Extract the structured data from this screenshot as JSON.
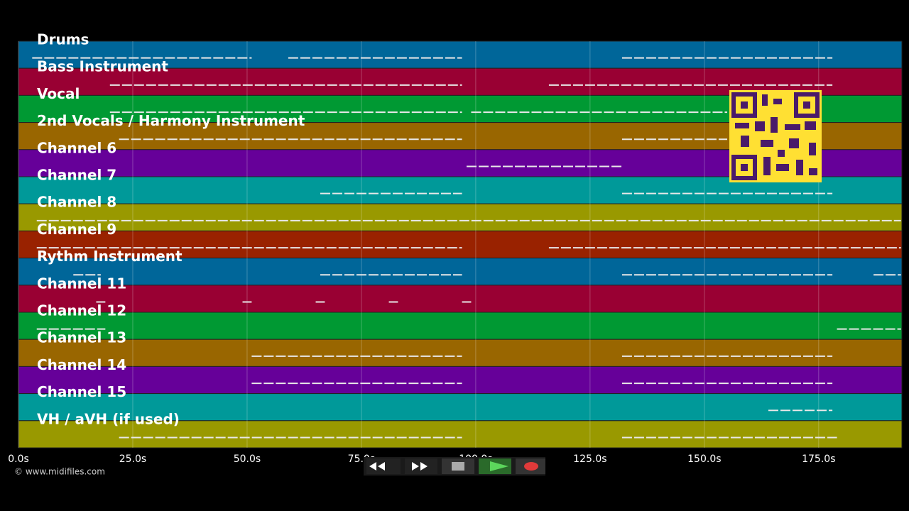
{
  "tracks": [
    {
      "name": "Drums",
      "color": "#006699",
      "notes": [
        [
          3,
          51
        ],
        [
          59,
          97
        ],
        [
          132,
          178
        ]
      ]
    },
    {
      "name": "Bass Instrument",
      "color": "#990033",
      "notes": [
        [
          20,
          97
        ],
        [
          116,
          178
        ]
      ]
    },
    {
      "name": "Vocal",
      "color": "#009933",
      "notes": [
        [
          20,
          97
        ],
        [
          99,
          155
        ]
      ]
    },
    {
      "name": "2nd Vocals / Harmony Instrument",
      "color": "#996600",
      "notes": [
        [
          22,
          97
        ],
        [
          132,
          155
        ]
      ]
    },
    {
      "name": "Channel 6",
      "color": "#660099",
      "notes": [
        [
          98,
          132
        ]
      ]
    },
    {
      "name": "Channel 7",
      "color": "#009999",
      "notes": [
        [
          66,
          97
        ],
        [
          132,
          178
        ]
      ]
    },
    {
      "name": "Channel 8",
      "color": "#999900",
      "notes": [
        [
          4,
          193
        ]
      ]
    },
    {
      "name": "Channel 9",
      "color": "#992200",
      "notes": [
        [
          4,
          97
        ],
        [
          116,
          193
        ]
      ]
    },
    {
      "name": "Rythm Instrument",
      "color": "#006699",
      "notes": [
        [
          12,
          18
        ],
        [
          66,
          97
        ],
        [
          132,
          178
        ],
        [
          187,
          193
        ]
      ]
    },
    {
      "name": "Channel 11",
      "color": "#990033",
      "notes": [
        [
          17,
          19
        ],
        [
          49,
          51
        ],
        [
          65,
          67
        ],
        [
          81,
          83
        ],
        [
          97,
          99
        ]
      ]
    },
    {
      "name": "Channel 12",
      "color": "#009933",
      "notes": [
        [
          4,
          19
        ],
        [
          179,
          193
        ]
      ]
    },
    {
      "name": "Channel 13",
      "color": "#996600",
      "notes": [
        [
          51,
          97
        ],
        [
          132,
          178
        ]
      ]
    },
    {
      "name": "Channel 14",
      "color": "#660099",
      "notes": [
        [
          51,
          97
        ],
        [
          132,
          178
        ]
      ]
    },
    {
      "name": "Channel 15",
      "color": "#009999",
      "notes": [
        [
          164,
          178
        ]
      ]
    },
    {
      "name": "VH / aVH (if used)",
      "color": "#999900",
      "notes": [
        [
          22,
          97
        ],
        [
          132,
          179
        ]
      ]
    }
  ],
  "axis": {
    "xlim": [
      0,
      193.2
    ],
    "xticks": [
      {
        "value": 0,
        "label": "0.0s"
      },
      {
        "value": 25,
        "label": "25.0s"
      },
      {
        "value": 50,
        "label": "50.0s"
      },
      {
        "value": 75,
        "label": "75.0s"
      },
      {
        "value": 100,
        "label": "100.0s"
      },
      {
        "value": 125,
        "label": "125.0s"
      },
      {
        "value": 150,
        "label": "150.0s"
      },
      {
        "value": 175,
        "label": "175.0s"
      }
    ]
  },
  "copyright": "© www.midifiles.com"
}
